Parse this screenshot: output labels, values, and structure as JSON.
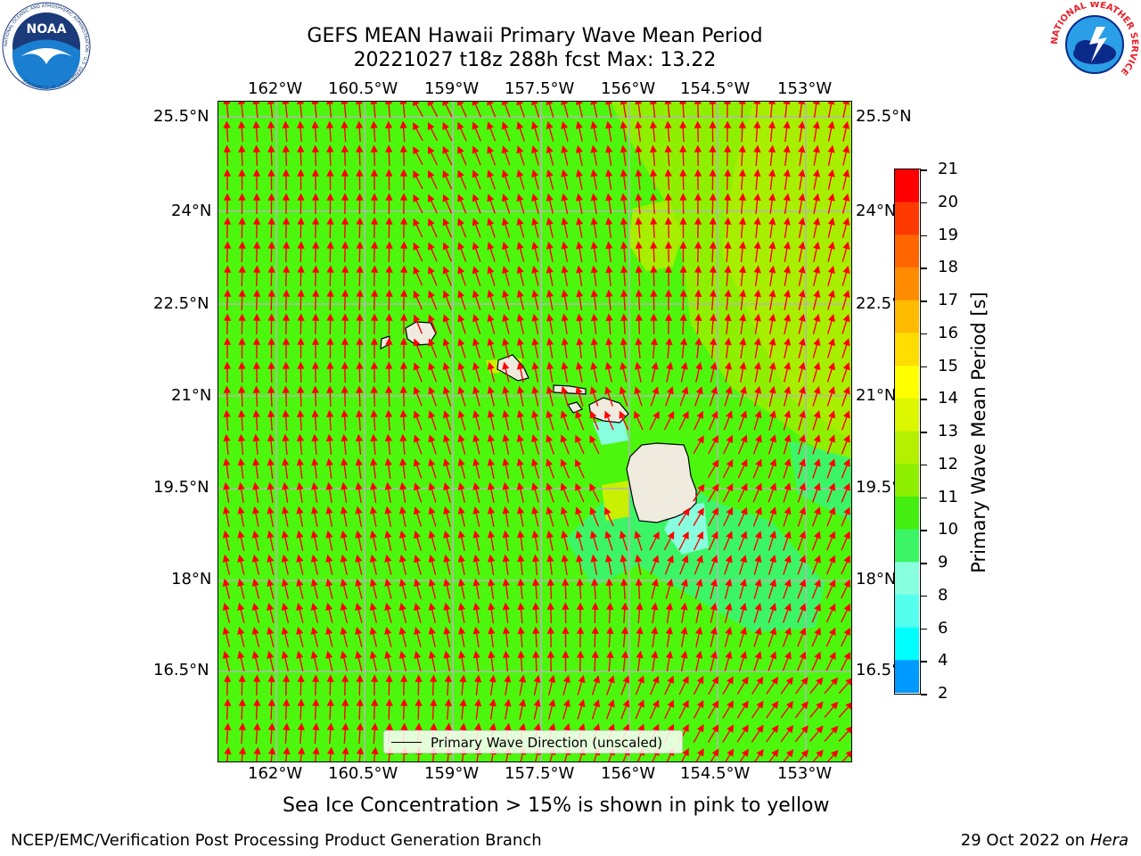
{
  "header": {
    "title_line1": "GEFS MEAN Hawaii Primary Wave Mean Period",
    "title_line2": "20221027 t18z 288h fcst   Max: 13.22"
  },
  "logos": {
    "noaa": {
      "text": "NOAA",
      "ring_text": "NATIONAL OCEANIC AND ATMOSPHERIC ADMINISTRATION · U.S. DEPARTMENT OF COMMERCE"
    },
    "nws": {
      "ring_text": "NATIONAL WEATHER SERVICE"
    }
  },
  "map": {
    "lon_ticks": [
      "162°W",
      "160.5°W",
      "159°W",
      "157.5°W",
      "156°W",
      "154.5°W",
      "153°W"
    ],
    "lat_ticks": [
      "25.5°N",
      "24°N",
      "22.5°N",
      "21°N",
      "19.5°N",
      "18°N",
      "16.5°N"
    ],
    "lat_ticks_right": [
      "25.5°N",
      "24°N",
      "22.5°",
      "21°N",
      "19.5°",
      "18°N",
      "16.5°"
    ],
    "legend_label": "Primary Wave Direction (unscaled)",
    "arrow_color": "#ff0000",
    "land_color": "#efebdf",
    "base_color": "#4cf70d"
  },
  "colorbar": {
    "title": "Primary Wave Mean Period [s]",
    "labels": [
      "21",
      "20",
      "19",
      "18",
      "17",
      "16",
      "15",
      "14",
      "13",
      "12",
      "11",
      "10",
      "9",
      "8",
      "6",
      "4",
      "2"
    ],
    "colors": [
      "#ff0000",
      "#ff3a00",
      "#ff6600",
      "#ff8c00",
      "#ffbb00",
      "#ffdd00",
      "#ffff00",
      "#ddf700",
      "#b4f000",
      "#8ef000",
      "#44ee10",
      "#3cf566",
      "#88ffdd",
      "#55ffee",
      "#00ffff",
      "#0099ff",
      "#0040ff",
      "#0000ff"
    ]
  },
  "captions": {
    "sea_ice": "Sea Ice Concentration > 15% is shown in pink to yellow",
    "left": "NCEP/EMC/Verification Post Processing Product Generation Branch",
    "date": "29 Oct 2022 on ",
    "host": "Hera"
  }
}
